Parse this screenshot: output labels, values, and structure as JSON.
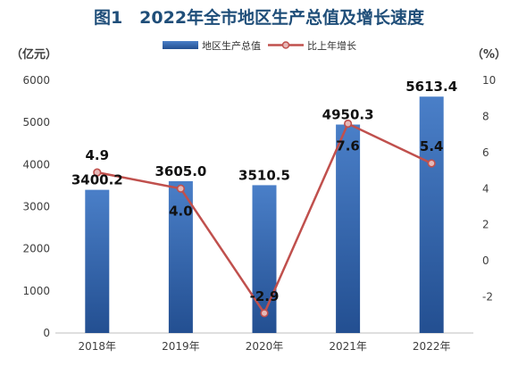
{
  "chart_data": {
    "type": "bar",
    "title": "图1　2022年全市地区生产总值及增长速度",
    "categories": [
      "2018年",
      "2019年",
      "2020年",
      "2021年",
      "2022年"
    ],
    "series": [
      {
        "name": "地区生产总值",
        "type": "bar",
        "axis": "left",
        "values": [
          3400.2,
          3605.0,
          3510.5,
          4950.3,
          5613.4
        ],
        "labels": [
          "3400.2",
          "3605.0",
          "3510.5",
          "4950.3",
          "5613.4"
        ],
        "color": "#2e64ae"
      },
      {
        "name": "比上年增长",
        "type": "line",
        "axis": "right",
        "values": [
          4.9,
          4.0,
          -2.9,
          7.6,
          5.4
        ],
        "labels": [
          "4.9",
          "4.0",
          "-2.9",
          "7.6",
          "5.4"
        ],
        "color": "#c0504d"
      }
    ],
    "y_left": {
      "unit": "（亿元）",
      "range": [
        0,
        6000
      ],
      "ticks": [
        "0",
        "1000",
        "2000",
        "3000",
        "4000",
        "5000",
        "6000"
      ]
    },
    "y_right": {
      "unit": "（%）",
      "range": [
        -4,
        10
      ],
      "ticks": [
        "-2",
        "0",
        "2",
        "4",
        "6",
        "8",
        "10"
      ]
    },
    "grid": false,
    "legend": "top-center"
  },
  "colors": {
    "bar": "#2e64ae",
    "bar_light": "#5b8bd0",
    "line": "#c0504d",
    "marker_fill": "#e6b9b8",
    "axis_text": "#404040",
    "title": "#1f4e79"
  }
}
